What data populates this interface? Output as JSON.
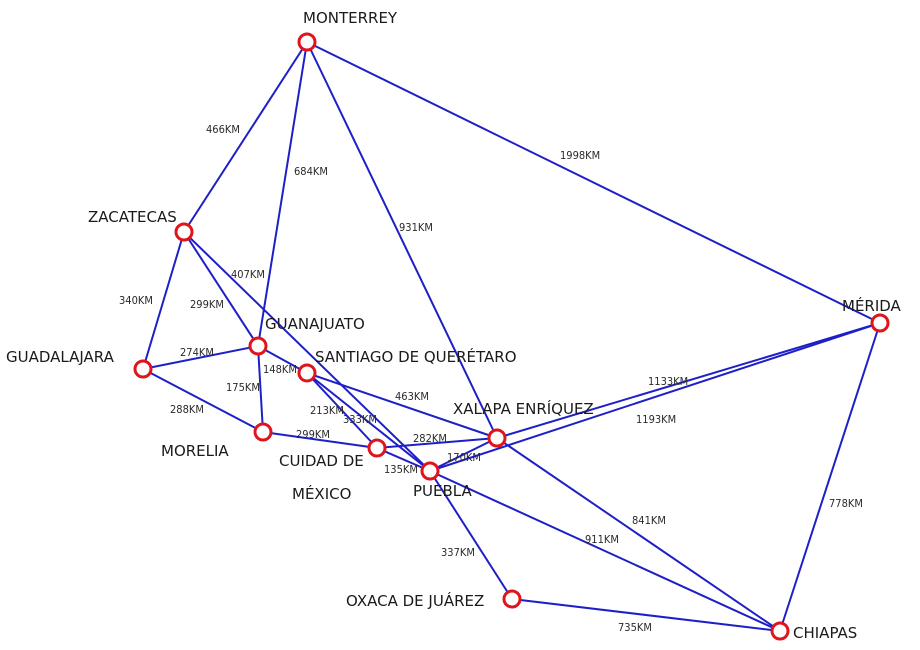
{
  "colors": {
    "edge": "#1f1fc7",
    "node_stroke": "#e0141b",
    "node_fill": "#ffffff",
    "text": "#1a1a1a",
    "background": "#ffffff"
  },
  "nodes": {
    "monterrey": {
      "name": "MONTERREY"
    },
    "zacatecas": {
      "name": "ZACATECAS"
    },
    "guadalajara": {
      "name": "GUADALAJARA"
    },
    "guanajuato": {
      "name": "GUANAJUATO"
    },
    "queretaro": {
      "name": "SANTIAGO DE QUERÉTARO"
    },
    "morelia": {
      "name": "MORELIA"
    },
    "cdmx": {
      "name_line1": "CUIDAD DE",
      "name_line2": "MÉXICO"
    },
    "puebla": {
      "name": "PUEBLA"
    },
    "xalapa": {
      "name": "XALAPA ENRÍQUEZ"
    },
    "merida": {
      "name": "MÉRIDA"
    },
    "oaxaca": {
      "name": "OXACA DE JUÁREZ"
    },
    "chiapas": {
      "name": "CHIAPAS"
    }
  },
  "edges": [
    {
      "from": "monterrey",
      "to": "zacatecas",
      "label": "466KM"
    },
    {
      "from": "monterrey",
      "to": "guanajuato",
      "label": "684KM"
    },
    {
      "from": "monterrey",
      "to": "xalapa",
      "label": "931KM"
    },
    {
      "from": "monterrey",
      "to": "merida",
      "label": "1998KM"
    },
    {
      "from": "zacatecas",
      "to": "guadalajara",
      "label": "340KM"
    },
    {
      "from": "zacatecas",
      "to": "guanajuato",
      "label": "299KM"
    },
    {
      "from": "zacatecas",
      "to": "puebla",
      "label": "407KM"
    },
    {
      "from": "guadalajara",
      "to": "guanajuato",
      "label": "274KM"
    },
    {
      "from": "guadalajara",
      "to": "morelia",
      "label": "288KM"
    },
    {
      "from": "guanajuato",
      "to": "morelia",
      "label": "175KM"
    },
    {
      "from": "guanajuato",
      "to": "queretaro",
      "label": "148KM"
    },
    {
      "from": "queretaro",
      "to": "cdmx",
      "label": "213KM"
    },
    {
      "from": "queretaro",
      "to": "puebla",
      "label": "333KM"
    },
    {
      "from": "queretaro",
      "to": "xalapa",
      "label": "463KM"
    },
    {
      "from": "morelia",
      "to": "cdmx",
      "label": "299KM"
    },
    {
      "from": "cdmx",
      "to": "xalapa",
      "label": "282KM"
    },
    {
      "from": "cdmx",
      "to": "puebla",
      "label": "135KM"
    },
    {
      "from": "puebla",
      "to": "xalapa",
      "label": "170KM"
    },
    {
      "from": "xalapa",
      "to": "merida",
      "label": "1133KM"
    },
    {
      "from": "puebla",
      "to": "merida",
      "label": "1193KM"
    },
    {
      "from": "xalapa",
      "to": "chiapas",
      "label": "841KM"
    },
    {
      "from": "puebla",
      "to": "chiapas",
      "label": "911KM"
    },
    {
      "from": "puebla",
      "to": "oaxaca",
      "label": "337KM"
    },
    {
      "from": "oaxaca",
      "to": "chiapas",
      "label": "735KM"
    },
    {
      "from": "merida",
      "to": "chiapas",
      "label": "778KM"
    }
  ]
}
